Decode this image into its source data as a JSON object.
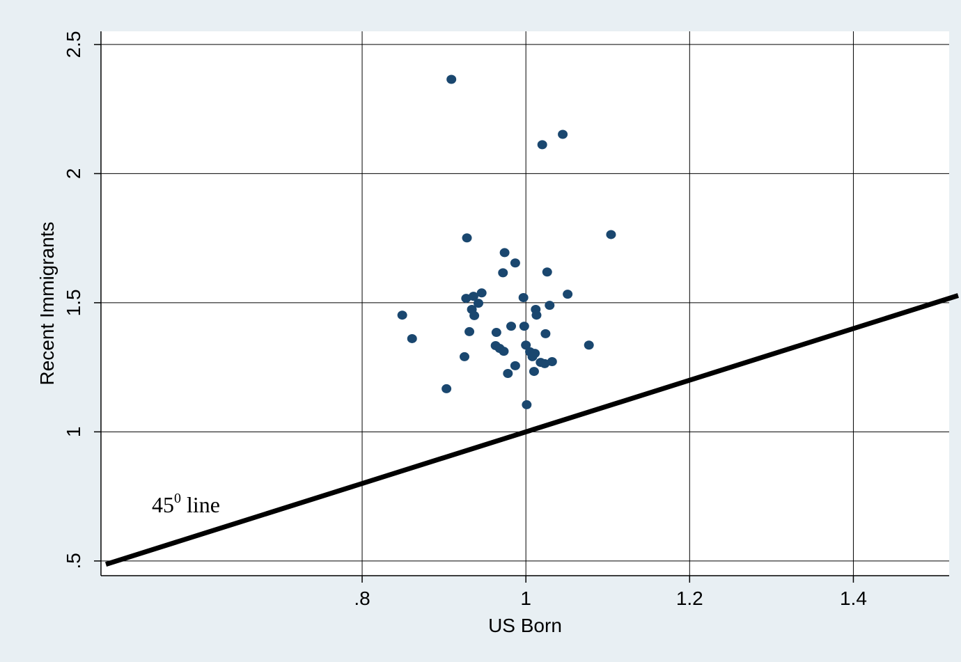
{
  "chart_data": {
    "type": "scatter",
    "x_label": "US Born",
    "y_label": "Recent Immigrants",
    "color": "#1a476f",
    "grid": true,
    "xlim": [
      0.481,
      1.517
    ],
    "ylim": [
      0.443,
      2.551
    ],
    "xticks": [
      {
        "value": 0.8,
        "label": ".8"
      },
      1,
      1.2,
      1.4
    ],
    "yticks": [
      {
        "value": 0.5,
        "label": ".5"
      },
      1,
      1.5,
      2,
      2.5
    ],
    "x": [
      0.909,
      1.045,
      1.02,
      1.104,
      0.928,
      0.974,
      0.987,
      0.972,
      1.026,
      1.051,
      0.946,
      0.936,
      0.927,
      0.997,
      0.942,
      0.934,
      0.937,
      1.012,
      1.013,
      1.029,
      0.849,
      0.861,
      0.931,
      0.964,
      0.982,
      0.998,
      1.024,
      1.077,
      0.963,
      0.968,
      0.973,
      1.0,
      1.005,
      1.011,
      1.008,
      0.925,
      0.987,
      1.018,
      1.023,
      1.032,
      1.01,
      0.978,
      0.903,
      1.001
    ],
    "values": [
      2.365,
      2.152,
      2.112,
      1.764,
      1.751,
      1.694,
      1.654,
      1.616,
      1.619,
      1.533,
      1.538,
      1.525,
      1.517,
      1.52,
      1.498,
      1.474,
      1.45,
      1.474,
      1.452,
      1.49,
      1.452,
      1.361,
      1.388,
      1.385,
      1.409,
      1.409,
      1.38,
      1.336,
      1.334,
      1.323,
      1.312,
      1.336,
      1.31,
      1.304,
      1.291,
      1.291,
      1.256,
      1.269,
      1.264,
      1.272,
      1.234,
      1.226,
      1.167,
      1.105
    ],
    "reference_line": {
      "x": [
        0.487,
        1.528
      ],
      "y": [
        0.487,
        1.528
      ],
      "color": "#000000"
    },
    "annotation": {
      "base": "45",
      "superscript": "0",
      "suffix": "line"
    }
  }
}
